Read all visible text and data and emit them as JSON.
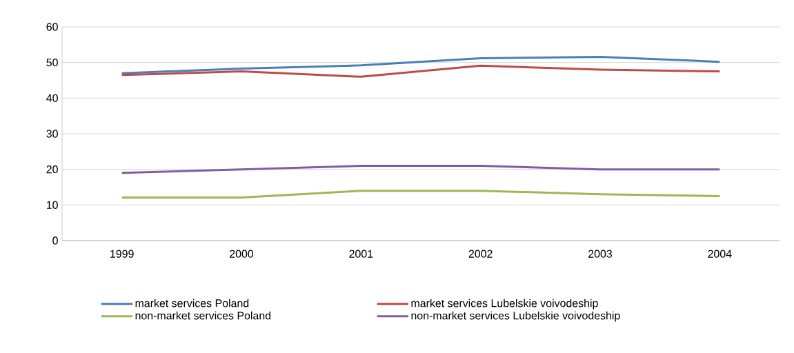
{
  "chart_data": {
    "type": "line",
    "categories": [
      "1999",
      "2000",
      "2001",
      "2002",
      "2003",
      "2004"
    ],
    "series": [
      {
        "name": "market services Poland",
        "color": "#4a7ebb",
        "values": [
          47,
          48.3,
          49.2,
          51.2,
          51.6,
          50.2
        ]
      },
      {
        "name": "market services Lubelskie voivodeship",
        "color": "#be4b48",
        "values": [
          46.5,
          47.5,
          46,
          49.1,
          48,
          47.5
        ]
      },
      {
        "name": "non-market services Poland",
        "color": "#98b954",
        "values": [
          12.1,
          12.1,
          14,
          14,
          13,
          12.5
        ]
      },
      {
        "name": "non-market services Lubelskie voivodeship",
        "color": "#7d60a0",
        "values": [
          19,
          20,
          21,
          21,
          20,
          20
        ]
      }
    ],
    "ylim": [
      0,
      60
    ],
    "yticks": [
      0,
      10,
      20,
      30,
      40,
      50,
      60
    ],
    "grid": "y",
    "legend": "bottom",
    "marker": "none",
    "line_style": "solid"
  }
}
